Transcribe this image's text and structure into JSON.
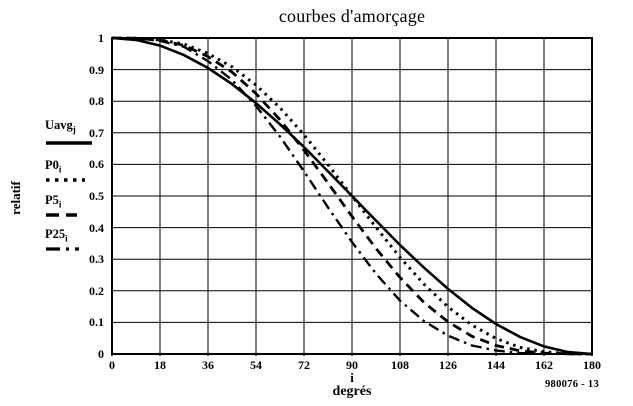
{
  "title": "courbes d'amorçage",
  "footer_ref": "980076 - 13",
  "colors": {
    "ink": "#000000",
    "background": "#ffffff"
  },
  "axes": {
    "x_ticks": [
      "0",
      "18",
      "36",
      "54",
      "72",
      "90",
      "108",
      "126",
      "144",
      "162",
      "180"
    ],
    "y_ticks": [
      "1",
      "0.9",
      "0.8",
      "0.7",
      "0.6",
      "0.5",
      "0.4",
      "0.3",
      "0.2",
      "0.1",
      "0"
    ],
    "x_var": "i",
    "x_unit": "degrés",
    "y_label": "relatif"
  },
  "legend": {
    "items": [
      {
        "base": "Uavg",
        "sub": "j",
        "style": "solid"
      },
      {
        "base": "P0",
        "sub": "i",
        "style": "dotted"
      },
      {
        "base": "P5",
        "sub": "i",
        "style": "dashed"
      },
      {
        "base": "P25",
        "sub": "i",
        "style": "dashdot"
      }
    ]
  },
  "chart_data": {
    "type": "line",
    "title": "courbes d'amorçage",
    "xlabel": "i (degrés)",
    "ylabel": "relatif",
    "xlim": [
      0,
      180
    ],
    "ylim": [
      0,
      1
    ],
    "grid": true,
    "legend_position": "left",
    "x": [
      0,
      9,
      18,
      27,
      36,
      45,
      54,
      63,
      72,
      81,
      90,
      99,
      108,
      117,
      126,
      135,
      144,
      153,
      162,
      171,
      180
    ],
    "series": [
      {
        "name": "Uavg",
        "index": "j",
        "style": "solid",
        "values": [
          1,
          0.994,
          0.976,
          0.946,
          0.905,
          0.854,
          0.794,
          0.727,
          0.655,
          0.578,
          0.5,
          0.422,
          0.345,
          0.273,
          0.206,
          0.146,
          0.095,
          0.054,
          0.024,
          0.006,
          0
        ]
      },
      {
        "name": "P0",
        "index": "i",
        "style": "dotted",
        "values": [
          1,
          0.999,
          0.994,
          0.981,
          0.951,
          0.909,
          0.851,
          0.779,
          0.694,
          0.599,
          0.5,
          0.401,
          0.306,
          0.221,
          0.149,
          0.091,
          0.049,
          0.021,
          0.007,
          0.001,
          0
        ]
      },
      {
        "name": "P5",
        "index": "i",
        "style": "dashed",
        "values": [
          1,
          0.999,
          0.993,
          0.977,
          0.941,
          0.892,
          0.824,
          0.741,
          0.645,
          0.541,
          0.435,
          0.334,
          0.242,
          0.163,
          0.102,
          0.056,
          0.027,
          0.01,
          0.003,
          0.001,
          0
        ]
      },
      {
        "name": "P25",
        "index": "i",
        "style": "dashdot",
        "values": [
          1,
          0.999,
          0.991,
          0.972,
          0.927,
          0.867,
          0.785,
          0.688,
          0.578,
          0.464,
          0.354,
          0.254,
          0.169,
          0.104,
          0.058,
          0.027,
          0.011,
          0.003,
          0.001,
          0,
          0
        ]
      }
    ]
  }
}
